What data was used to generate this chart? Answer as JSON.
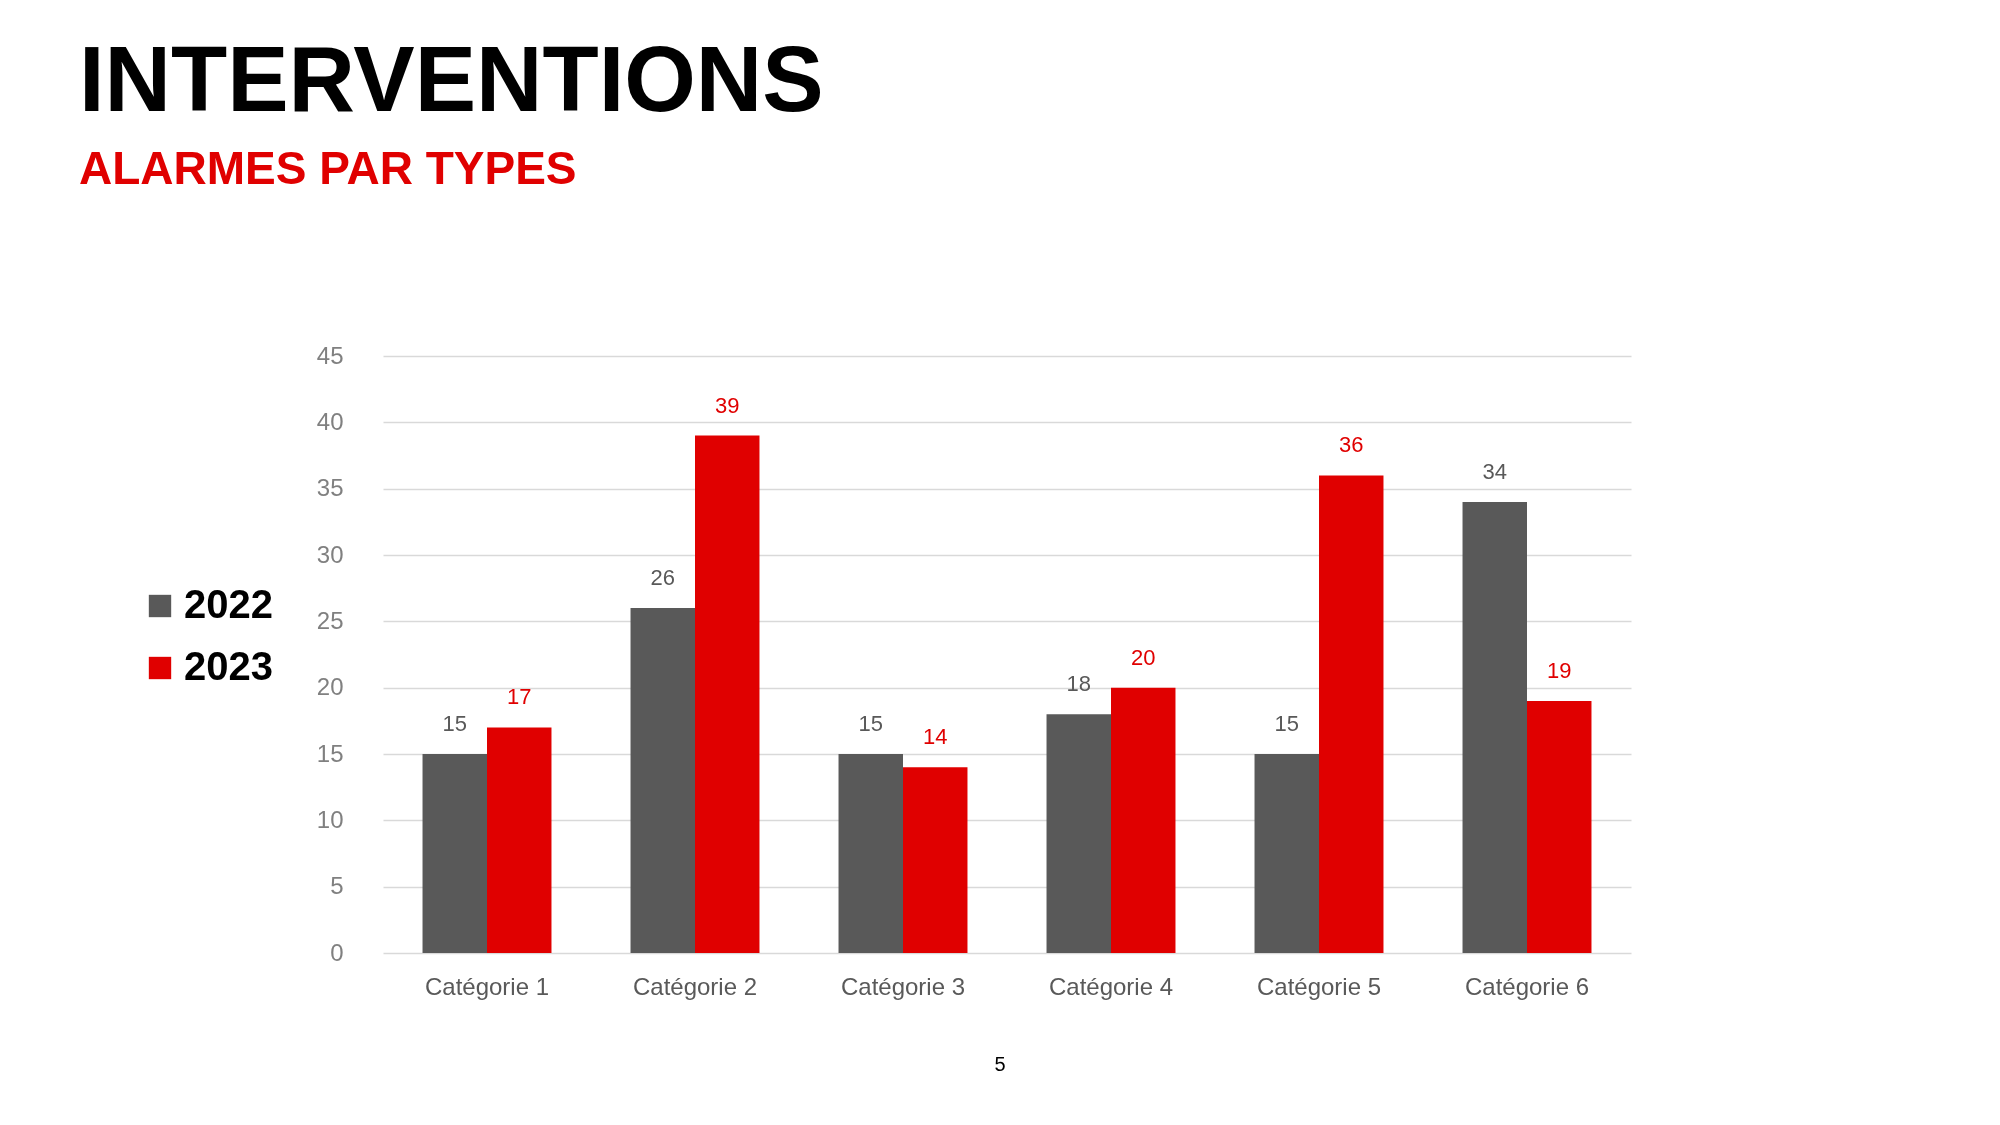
{
  "chart_data": {
    "type": "bar",
    "title": "INTERVENTIONS",
    "subtitle": "ALARMES PAR TYPES",
    "categories": [
      "Catégorie 1",
      "Catégorie 2",
      "Catégorie 3",
      "Catégorie 4",
      "Catégorie 5",
      "Catégorie 6"
    ],
    "series": [
      {
        "name": "2022",
        "color": "#595959",
        "values": [
          15,
          26,
          15,
          18,
          15,
          34
        ]
      },
      {
        "name": "2023",
        "color": "#e00000",
        "values": [
          17,
          39,
          14,
          20,
          36,
          19
        ]
      }
    ],
    "ylim": [
      0,
      45
    ],
    "yticks": [
      0,
      5,
      10,
      15,
      20,
      25,
      30,
      35,
      40,
      45
    ],
    "grid": "y",
    "legend": "left",
    "data_labels": true,
    "annotations": [
      "5"
    ]
  }
}
